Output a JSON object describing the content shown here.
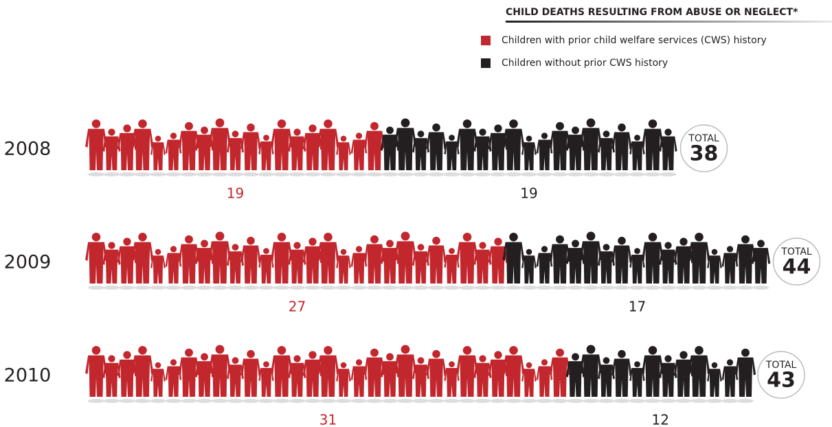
{
  "chart_data": {
    "type": "pictogram",
    "title": "CHILD DEATHS RESULTING FROM ABUSE OR NEGLECT*",
    "categories": [
      "2008",
      "2009",
      "2010"
    ],
    "series": [
      {
        "name": "Children with prior child welfare services (CWS) history",
        "color": "#c1272d",
        "values": [
          19,
          27,
          31
        ]
      },
      {
        "name": "Children without prior CWS history",
        "color": "#231f20",
        "values": [
          19,
          17,
          12
        ]
      }
    ],
    "total_label": "TOTAL",
    "totals": [
      38,
      44,
      43
    ]
  }
}
